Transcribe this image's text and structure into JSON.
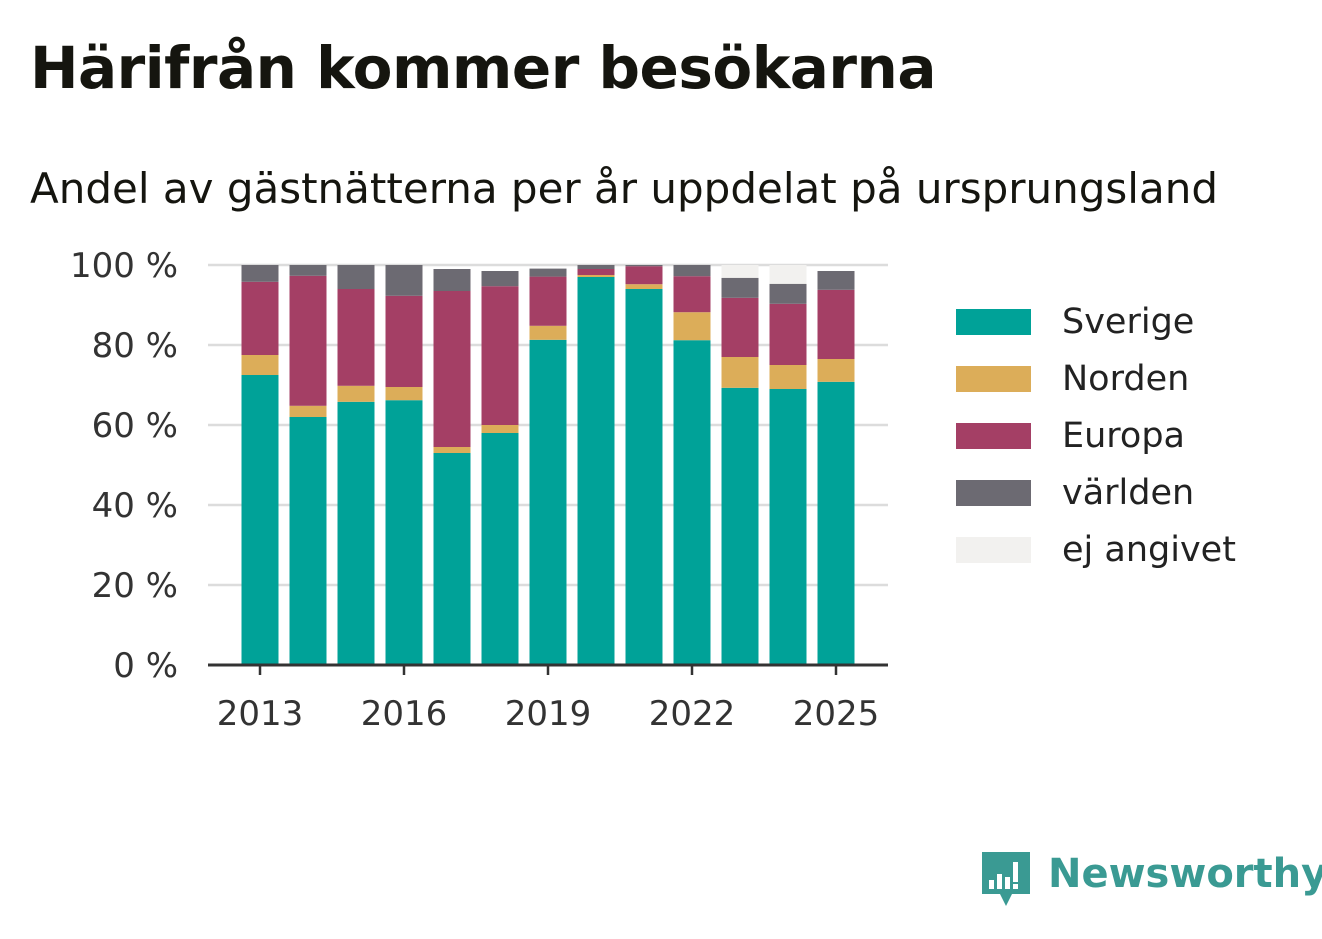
{
  "title": "Härifrån kommer besökarna",
  "subtitle": "Andel av gästnätterna per år uppdelat på ursprungsland",
  "brand": {
    "name": "Newsworthy",
    "icon": "newsworthy-logo-icon",
    "color": "#3a9a93"
  },
  "chart_data": {
    "type": "bar",
    "stacked": true,
    "categories": [
      "2013",
      "2014",
      "2015",
      "2016",
      "2017",
      "2018",
      "2019",
      "2020",
      "2021",
      "2022",
      "2023",
      "2024",
      "2025"
    ],
    "x_tick_labels": [
      "2013",
      "2016",
      "2019",
      "2022",
      "2025"
    ],
    "y_ticks": [
      0,
      20,
      40,
      60,
      80,
      100
    ],
    "y_tick_labels": [
      "0 %",
      "20 %",
      "40 %",
      "60 %",
      "80 %",
      "100 %"
    ],
    "ylim": [
      0,
      100
    ],
    "grid": true,
    "legend_position": "right",
    "series": [
      {
        "name": "Sverige",
        "color": "#00a298",
        "values": [
          72.5,
          62,
          65.8,
          66.2,
          53,
          58,
          81.3,
          97,
          94,
          81.2,
          69.3,
          69,
          70.8
        ]
      },
      {
        "name": "Norden",
        "color": "#dcad59",
        "values": [
          5,
          2.8,
          4,
          3.3,
          1.5,
          2,
          3.5,
          0.5,
          1.2,
          7,
          7.7,
          6,
          5.7
        ]
      },
      {
        "name": "Europa",
        "color": "#a43f65",
        "values": [
          18.3,
          32.5,
          24.2,
          22.8,
          39,
          34.7,
          12.3,
          1.5,
          4.5,
          9,
          14.8,
          15.3,
          17.3
        ]
      },
      {
        "name": "världen",
        "color": "#6c6a72",
        "values": [
          4.2,
          2.7,
          6,
          7.7,
          5.5,
          3.8,
          2,
          1,
          0.3,
          2.8,
          5,
          5,
          4.7
        ]
      },
      {
        "name": "ej angivet",
        "color": "#f2f1ef",
        "values": [
          0,
          0,
          0,
          0,
          0,
          0,
          0,
          0,
          0,
          0,
          3.2,
          4.7,
          0
        ]
      }
    ]
  }
}
